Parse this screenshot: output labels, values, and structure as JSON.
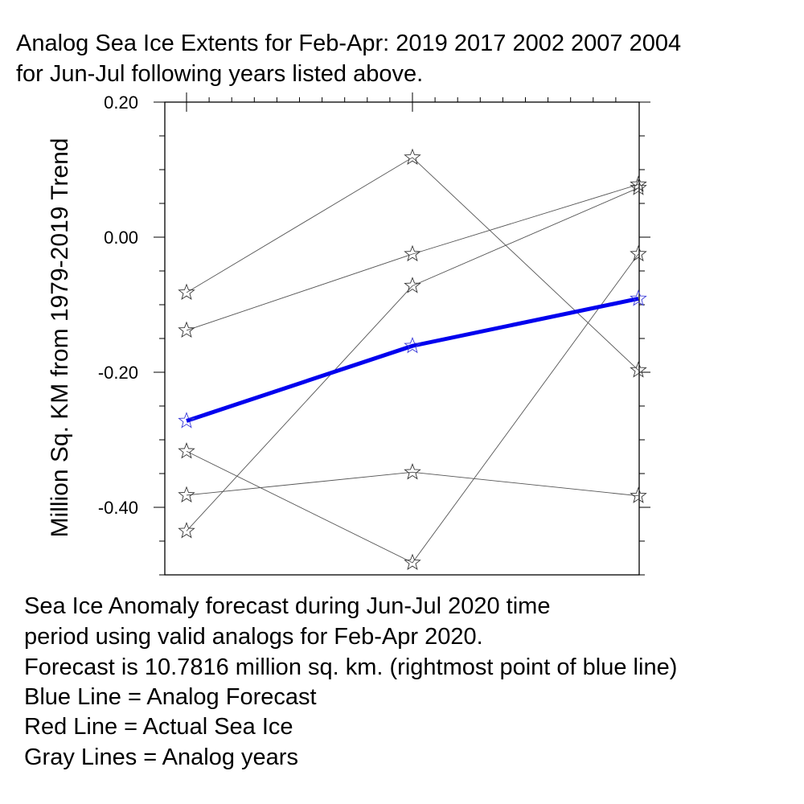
{
  "chart_data": {
    "type": "line",
    "title_lines": [
      "Analog Sea Ice Extents for Feb-Apr: 2019 2017 2002 2007 2004",
      "for Jun-Jul following years listed above."
    ],
    "ylabel": "Million Sq. KM from 1979-2019 Trend",
    "xlabel": "",
    "ylim": [
      -0.5,
      0.2
    ],
    "yticks": [
      0.2,
      0.0,
      -0.2,
      -0.4
    ],
    "ytick_labels": [
      "0.20",
      "0.00",
      "-0.20",
      "-0.40"
    ],
    "x": [
      0,
      1,
      2
    ],
    "grid": false,
    "marker": "star",
    "series": [
      {
        "kind": "analog",
        "color": "#555555",
        "values": [
          -0.082,
          0.118,
          -0.197
        ]
      },
      {
        "kind": "analog",
        "color": "#555555",
        "values": [
          -0.138,
          -0.025,
          0.078
        ]
      },
      {
        "kind": "analog",
        "color": "#555555",
        "values": [
          -0.435,
          -0.072,
          0.073
        ]
      },
      {
        "kind": "analog",
        "color": "#555555",
        "values": [
          -0.382,
          -0.348,
          -0.383
        ]
      },
      {
        "kind": "analog",
        "color": "#555555",
        "values": [
          -0.317,
          -0.482,
          -0.025
        ]
      },
      {
        "kind": "forecast",
        "color": "#0000ee",
        "values": [
          -0.272,
          -0.161,
          -0.091
        ]
      }
    ]
  },
  "notes": {
    "line1": "Sea Ice Anomaly forecast during Jun-Jul 2020 time",
    "line2": "period using valid analogs for Feb-Apr 2020.",
    "line3": "Forecast is 10.7816 million sq. km. (rightmost point of blue line)",
    "line4": "Blue Line = Analog Forecast",
    "line5": "Red Line = Actual Sea Ice",
    "line6": "Gray Lines = Analog years"
  }
}
